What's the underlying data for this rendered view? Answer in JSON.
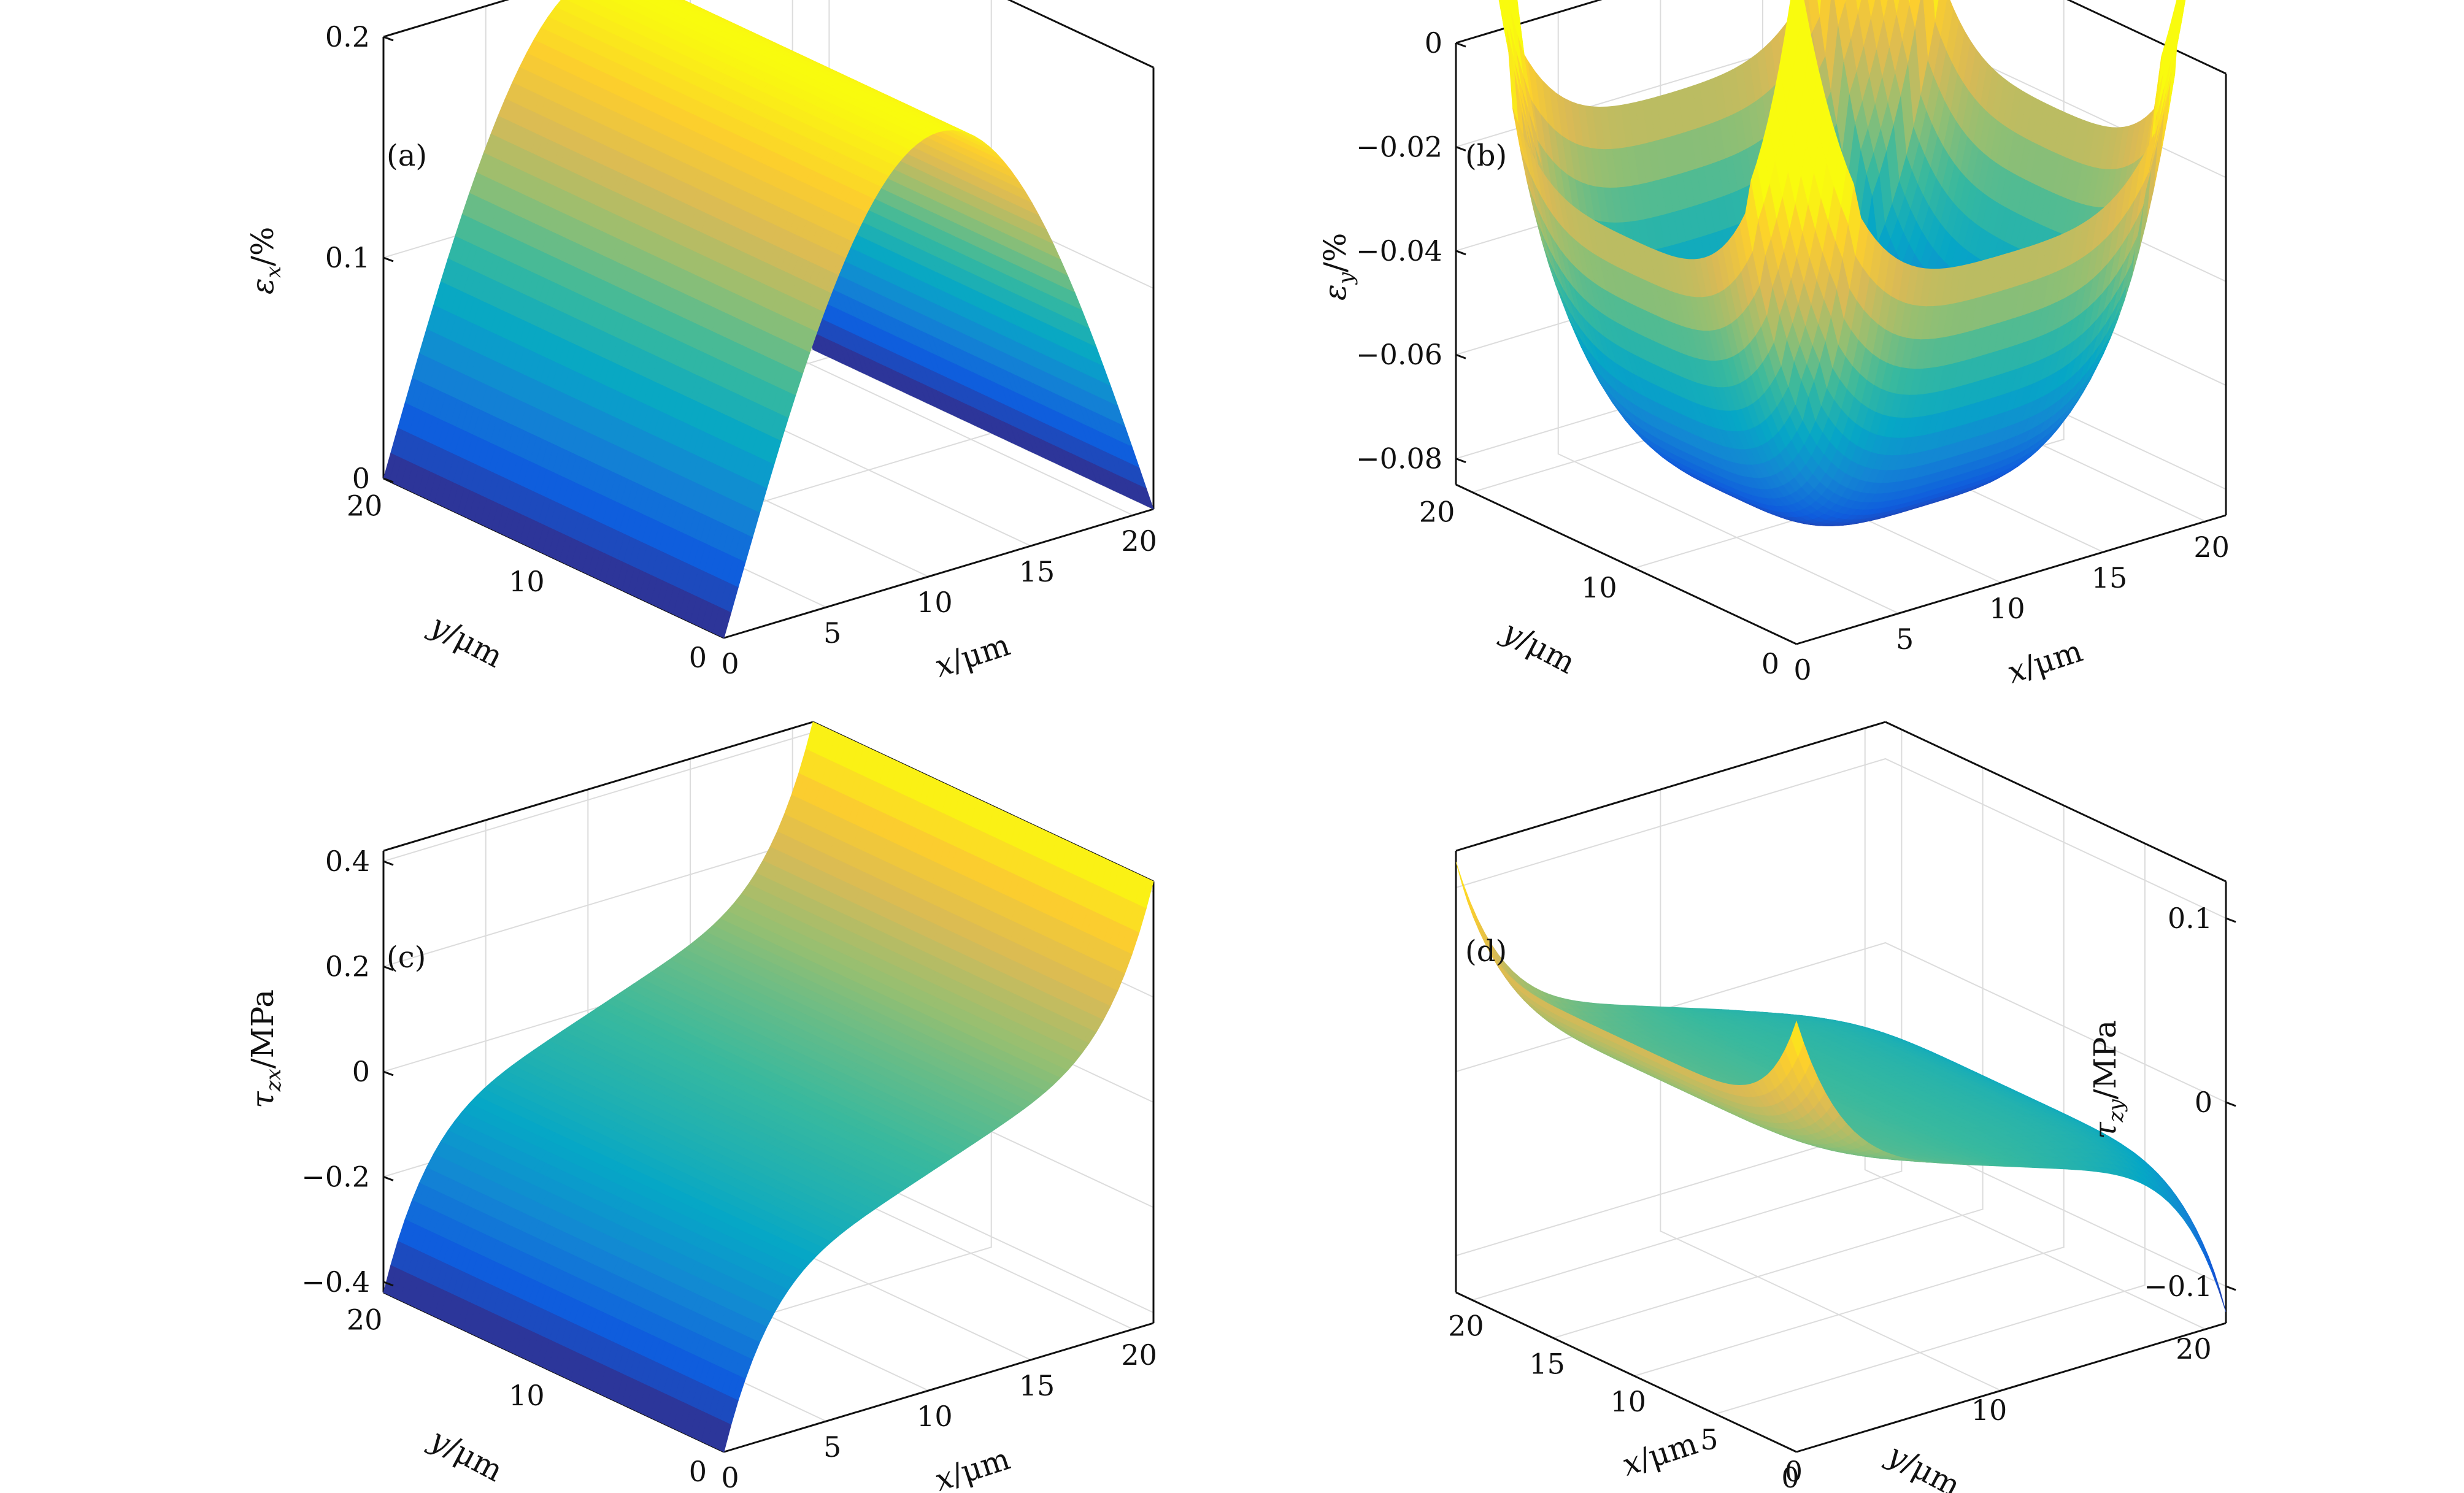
{
  "chart_data": [
    {
      "type": "surface",
      "panel_label": "(a)",
      "zlabel_symbol": "ε",
      "zlabel_sub": "x",
      "zlabel_unit": "/%",
      "xlabel_symbol": "x",
      "xlabel_unit": "/μm",
      "ylabel_symbol": "y",
      "ylabel_unit": "/μm",
      "xlim": [
        0,
        21
      ],
      "ylim": [
        0,
        21
      ],
      "zlim": [
        0,
        0.2
      ],
      "xticks": [
        0,
        5,
        10,
        15,
        20
      ],
      "xtick_labels": [
        "0",
        "5",
        "10",
        "15",
        "20"
      ],
      "yticks": [
        0,
        10,
        20
      ],
      "ytick_labels": [
        "0",
        "10",
        "20"
      ],
      "zticks": [
        0,
        0.1,
        0.2
      ],
      "ztick_labels": [
        "0",
        "0.1",
        "0.2"
      ],
      "x_increases_toward": "right",
      "grid": true,
      "colormap": "parula",
      "surface": "arch along x, constant along y: peak ≈0.2 at x≈10.5, ≈0 at x=0 and x=21",
      "samples": [
        {
          "x": 0,
          "z": 0.0
        },
        {
          "x": 2.5,
          "z": 0.1
        },
        {
          "x": 5,
          "z": 0.16
        },
        {
          "x": 10.5,
          "z": 0.2
        },
        {
          "x": 16,
          "z": 0.16
        },
        {
          "x": 18.5,
          "z": 0.1
        },
        {
          "x": 21,
          "z": 0.0
        }
      ]
    },
    {
      "type": "surface",
      "panel_label": "(b)",
      "zlabel_symbol": "ε",
      "zlabel_sub": "y",
      "zlabel_unit": "/%",
      "xlabel_symbol": "x",
      "xlabel_unit": "/μm",
      "ylabel_symbol": "y",
      "ylabel_unit": "/μm",
      "xlim": [
        0,
        21
      ],
      "ylim": [
        0,
        21
      ],
      "zlim": [
        -0.085,
        0
      ],
      "xticks": [
        0,
        5,
        10,
        15,
        20
      ],
      "xtick_labels": [
        "0",
        "5",
        "10",
        "15",
        "20"
      ],
      "yticks": [
        0,
        10,
        20
      ],
      "ytick_labels": [
        "0",
        "10",
        "20"
      ],
      "zticks": [
        -0.08,
        -0.06,
        -0.04,
        -0.02,
        0
      ],
      "ztick_labels": [
        "−0.08",
        "−0.06",
        "−0.04",
        "−0.02",
        "0"
      ],
      "x_increases_toward": "right",
      "grid": true,
      "colormap": "parula",
      "surface": "bowl: ≈ −0.08 at center, rising to ≈0 at the four corners",
      "samples": [
        {
          "x": 10.5,
          "y": 10.5,
          "z": -0.082
        },
        {
          "x": 0,
          "y": 10.5,
          "z": -0.055
        },
        {
          "x": 0,
          "y": 0,
          "z": -0.04
        },
        {
          "x": 0,
          "y": 21,
          "z": 0.0
        },
        {
          "x": 21,
          "y": 21,
          "z": 0.0
        }
      ]
    },
    {
      "type": "surface",
      "panel_label": "(c)",
      "zlabel_symbol": "τ",
      "zlabel_sub": "zx",
      "zlabel_unit": "/MPa",
      "xlabel_symbol": "x",
      "xlabel_unit": "/μm",
      "ylabel_symbol": "y",
      "ylabel_unit": "/μm",
      "xlim": [
        0,
        21
      ],
      "ylim": [
        0,
        21
      ],
      "zlim": [
        -0.42,
        0.42
      ],
      "xticks": [
        0,
        5,
        10,
        15,
        20
      ],
      "xtick_labels": [
        "0",
        "5",
        "10",
        "15",
        "20"
      ],
      "yticks": [
        0,
        10,
        20
      ],
      "ytick_labels": [
        "0",
        "10",
        "20"
      ],
      "zticks": [
        -0.4,
        -0.2,
        0,
        0.2,
        0.4
      ],
      "ztick_labels": [
        "−0.4",
        "−0.2",
        "0",
        "0.2",
        "0.4"
      ],
      "x_increases_toward": "right",
      "grid": true,
      "colormap": "parula",
      "surface": "antisymmetric in x, constant along y: ≈ −0.42 at x=0, 0 at x=10.5, ≈ 0.42 at x=21",
      "samples": [
        {
          "x": 0,
          "z": -0.42
        },
        {
          "x": 5,
          "z": -0.1
        },
        {
          "x": 10.5,
          "z": 0.0
        },
        {
          "x": 16,
          "z": 0.1
        },
        {
          "x": 21,
          "z": 0.42
        }
      ]
    },
    {
      "type": "surface",
      "panel_label": "(d)",
      "zlabel_symbol": "τ",
      "zlabel_sub": "zy",
      "zlabel_unit": "/MPa",
      "xlabel_symbol": "x",
      "xlabel_unit": "/μm",
      "ylabel_symbol": "y",
      "ylabel_unit": "/μm",
      "xlim": [
        0,
        21
      ],
      "ylim": [
        0,
        21
      ],
      "zlim": [
        -0.12,
        0.12
      ],
      "xticks": [
        0,
        5,
        10,
        15,
        20
      ],
      "xtick_labels": [
        "0",
        "5",
        "10",
        "15",
        "20"
      ],
      "yticks": [
        0,
        10,
        20
      ],
      "ytick_labels": [
        "0",
        "10",
        "20"
      ],
      "zticks": [
        -0.1,
        0,
        0.1
      ],
      "ztick_labels": [
        "−0.1",
        "0",
        "0.1"
      ],
      "x_increases_toward": "left",
      "grid": true,
      "colormap": "parula",
      "surface": "antisymmetric in y: ≈ 0.12 along y=0 edge, 0 at y=10.5, ≈ −0.12 along y=21 edge, strongest at corners",
      "samples": [
        {
          "x": 10.5,
          "y": 0,
          "z": 0.06
        },
        {
          "x": 0,
          "y": 0,
          "z": 0.12
        },
        {
          "x": 10.5,
          "y": 10.5,
          "z": 0.0
        },
        {
          "x": 10.5,
          "y": 21,
          "z": -0.06
        },
        {
          "x": 0,
          "y": 21,
          "z": -0.12
        }
      ]
    }
  ]
}
